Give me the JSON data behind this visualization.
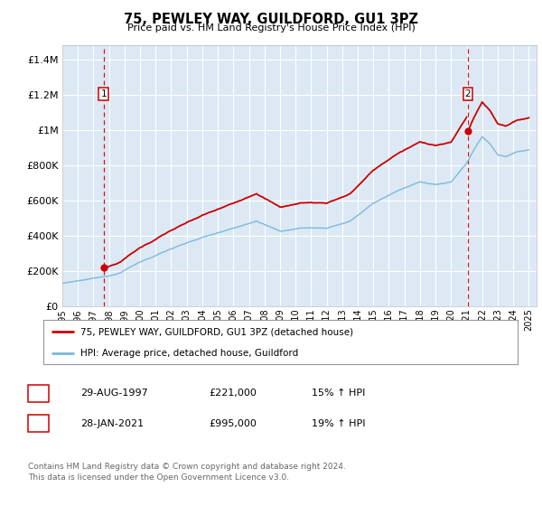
{
  "title": "75, PEWLEY WAY, GUILDFORD, GU1 3PZ",
  "subtitle": "Price paid vs. HM Land Registry's House Price Index (HPI)",
  "plot_bg_color": "#dce9f5",
  "yticks": [
    0,
    200000,
    400000,
    600000,
    800000,
    1000000,
    1200000,
    1400000
  ],
  "ytick_labels": [
    "£0",
    "£200K",
    "£400K",
    "£600K",
    "£800K",
    "£1M",
    "£1.2M",
    "£1.4M"
  ],
  "ylim": [
    0,
    1480000
  ],
  "xlim_start": 1995.0,
  "xlim_end": 2025.5,
  "sale1_date": 1997.66,
  "sale1_price": 221000,
  "sale2_date": 2021.08,
  "sale2_price": 995000,
  "hpi_color": "#7ab8d9",
  "price_color": "#cc0000",
  "vline_color": "#cc0000",
  "legend_label_price": "75, PEWLEY WAY, GUILDFORD, GU1 3PZ (detached house)",
  "legend_label_hpi": "HPI: Average price, detached house, Guildford",
  "table_row1": [
    "1",
    "29-AUG-1997",
    "£221,000",
    "15% ↑ HPI"
  ],
  "table_row2": [
    "2",
    "28-JAN-2021",
    "£995,000",
    "19% ↑ HPI"
  ],
  "footer": "Contains HM Land Registry data © Crown copyright and database right 2024.\nThis data is licensed under the Open Government Licence v3.0.",
  "xtick_years": [
    1995,
    1996,
    1997,
    1998,
    1999,
    2000,
    2001,
    2002,
    2003,
    2004,
    2005,
    2006,
    2007,
    2008,
    2009,
    2010,
    2011,
    2012,
    2013,
    2014,
    2015,
    2016,
    2017,
    2018,
    2019,
    2020,
    2021,
    2022,
    2023,
    2024,
    2025
  ]
}
